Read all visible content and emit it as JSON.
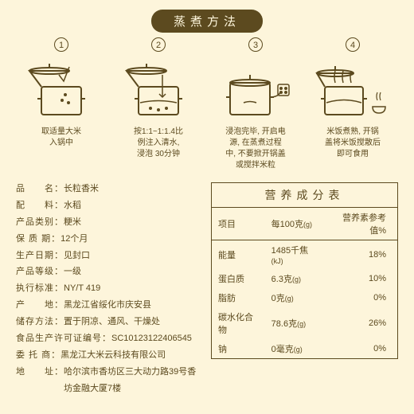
{
  "title": "蒸煮方法",
  "steps": [
    {
      "n": "1",
      "text": "取适量大米\n入锅中"
    },
    {
      "n": "2",
      "text": "按1:1~1:1.4比\n例注入清水,\n浸泡 30分钟"
    },
    {
      "n": "3",
      "text": "浸泡完毕, 开启电\n源, 在蒸煮过程\n中, 不要掀开锅盖\n或搅拌米粒"
    },
    {
      "n": "4",
      "text": "米饭煮熟, 开锅\n盖将米饭搅散后\n即可食用"
    }
  ],
  "specs": [
    {
      "l": "品　　名：",
      "v": "长粒香米"
    },
    {
      "l": "配　　料：",
      "v": "水稻"
    },
    {
      "l": "产品类别：",
      "v": "粳米"
    },
    {
      "l": "保 质 期：",
      "v": "12个月"
    },
    {
      "l": "生产日期：",
      "v": "见封口"
    },
    {
      "l": "产品等级：",
      "v": "一级"
    },
    {
      "l": "执行标准：",
      "v": "NY/T 419"
    },
    {
      "l": "产　　地：",
      "v": "黑龙江省绥化市庆安县"
    },
    {
      "l": "储存方法：",
      "v": "置于阴凉、通风、干燥处"
    },
    {
      "l": "食品生产许可证编号：",
      "v": "SC10123122406545"
    },
    {
      "l": "委 托 商：",
      "v": "黑龙江大米云科技有限公司"
    },
    {
      "l": "地　　址：",
      "v": "哈尔滨市香坊区三大动力路39号香坊金融大厦7楼"
    }
  ],
  "nutriTitle": "营养成分表",
  "nutriHead": [
    "项目",
    "每100克",
    "营养素参考值%"
  ],
  "nutri": [
    {
      "a": "能量",
      "b": "1485千焦",
      "u": "(kJ)",
      "c": "18%"
    },
    {
      "a": "蛋白质",
      "b": "6.3克",
      "u": "(g)",
      "c": "10%"
    },
    {
      "a": "脂肪",
      "b": "0克",
      "u": "(g)",
      "c": "0%"
    },
    {
      "a": "碳水化合物",
      "b": "78.6克",
      "u": "(g)",
      "c": "26%"
    },
    {
      "a": "钠",
      "b": "0毫克",
      "u": "(g)",
      "c": "0%"
    }
  ],
  "svg": {
    "stroke": "#5c4a1f",
    "pots": [
      "<svg width='90' height='80' viewBox='0 0 90 80'><g fill='none' stroke='#5c4a1f' stroke-width='2'><rect x='20' y='35' width='50' height='35' rx='3'/><line x1='15' y1='50' x2='20' y2='50'/><line x1='70' y1='50' x2='75' y2='50'/><path d='M20 35 L5 15 L55 15'/><ellipse cx='30' cy='15' rx='25' ry='4'/><line x1='30' y1='11' x2='30' y2='6'/><path d='M55 10 L48 28 L42 20' stroke-width='1.5'/><circle cx='50' cy='45' r='1' fill='#5c4a1f'/><circle cx='46' cy='52' r='1' fill='#5c4a1f'/><circle cx='54' cy='55' r='1' fill='#5c4a1f'/></g></svg>",
      "<svg width='90' height='80' viewBox='0 0 90 80'><g fill='none' stroke='#5c4a1f' stroke-width='2'><rect x='20' y='35' width='50' height='35' rx='3'/><line x1='15' y1='50' x2='20' y2='50'/><line x1='70' y1='50' x2='75' y2='50'/><path d='M20 35 L5 15 L55 15'/><ellipse cx='30' cy='15' rx='25' ry='4'/><line x1='30' y1='11' x2='30' y2='6'/><path d='M22 55 Q45 50 68 55' stroke-width='1.5'/><line x1='50' y1='20' x2='50' y2='48' stroke-width='1.5'/><path d='M46 44 L50 48 L54 44' stroke-width='1.5'/><circle cx='35' cy='62' r='1' fill='#5c4a1f'/><circle cx='45' cy='64' r='1' fill='#5c4a1f'/><circle cx='55' cy='62' r='1' fill='#5c4a1f'/></g></svg>",
      "<svg width='95' height='80' viewBox='0 0 95 80'><g fill='none' stroke='#5c4a1f' stroke-width='2'><rect x='15' y='30' width='50' height='40' rx='3'/><line x1='10' y1='48' x2='15' y2='48'/><line x1='65' y1='48' x2='70' y2='48'/><ellipse cx='40' cy='30' rx='25' ry='4'/><line x1='40' y1='26' x2='40' y2='20'/><path d='M32 55 Q40 52 48 55' stroke-width='1.5'/><path d='M65 48 Q75 48 78 42' stroke-width='1.5'/><rect x='75' y='32' width='14' height='14' rx='2' stroke-width='1.5'/><circle cx='79' cy='37' r='1' fill='#5c4a1f'/><circle cx='85' cy='37' r='1' fill='#5c4a1f'/><circle cx='79' cy='42' r='1' fill='#5c4a1f'/><circle cx='85' cy='42' r='1' fill='#5c4a1f'/></g></svg>",
      "<svg width='95' height='80' viewBox='0 0 95 80'><g fill='none' stroke='#5c4a1f' stroke-width='2'><rect x='12' y='35' width='48' height='35' rx='3'/><line x1='7' y1='50' x2='12' y2='50'/><line x1='60' y1='50' x2='65' y2='50'/><path d='M12 35 L2 18 L48 18'/><ellipse cx='25' cy='18' rx='23' ry='4'/><line x1='25' y1='14' x2='25' y2='9'/><path d='M25 30 Q23 22 25 15 M35 30 Q33 22 35 15 M45 30 Q43 22 45 15' stroke-width='1.5'/><path d='M14 55 Q36 48 58 55' stroke-width='1.5'/><path d='M72 60 Q72 68 80 68 Q88 68 88 60 Z' stroke-width='1.5'/><path d='M78 52 Q76 47 78 42 M82 52 Q80 47 82 42' stroke-width='1.2'/></g></svg>"
    ]
  }
}
